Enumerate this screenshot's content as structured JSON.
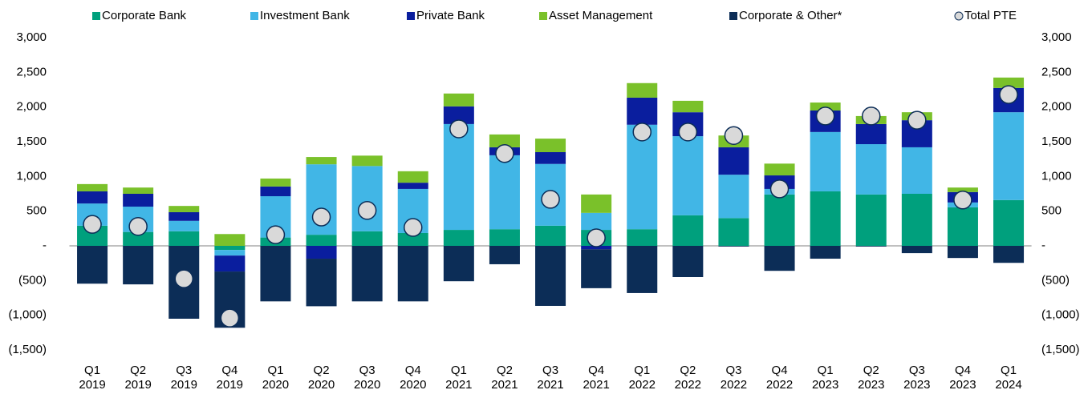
{
  "chart_data": {
    "type": "bar",
    "stacked": true,
    "categories": [
      [
        "Q1",
        "2019"
      ],
      [
        "Q2",
        "2019"
      ],
      [
        "Q3",
        "2019"
      ],
      [
        "Q4",
        "2019"
      ],
      [
        "Q1",
        "2020"
      ],
      [
        "Q2",
        "2020"
      ],
      [
        "Q3",
        "2020"
      ],
      [
        "Q4",
        "2020"
      ],
      [
        "Q1",
        "2021"
      ],
      [
        "Q2",
        "2021"
      ],
      [
        "Q3",
        "2021"
      ],
      [
        "Q4",
        "2021"
      ],
      [
        "Q1",
        "2022"
      ],
      [
        "Q2",
        "2022"
      ],
      [
        "Q3",
        "2022"
      ],
      [
        "Q4",
        "2022"
      ],
      [
        "Q1",
        "2023"
      ],
      [
        "Q2",
        "2023"
      ],
      [
        "Q3",
        "2023"
      ],
      [
        "Q4",
        "2023"
      ],
      [
        "Q1",
        "2024"
      ]
    ],
    "series": [
      {
        "name": "Corporate Bank",
        "color": "#00a07d",
        "values": [
          290,
          200,
          210,
          -60,
          120,
          160,
          210,
          185,
          230,
          240,
          290,
          230,
          240,
          440,
          400,
          740,
          785,
          740,
          750,
          555,
          660
        ]
      },
      {
        "name": "Investment Bank",
        "color": "#41b6e6",
        "values": [
          320,
          365,
          150,
          -80,
          595,
          1015,
          940,
          635,
          1525,
          1065,
          890,
          245,
          1505,
          1140,
          625,
          80,
          855,
          725,
          670,
          70,
          1265
        ]
      },
      {
        "name": "Private Bank",
        "color": "#0a1e9e",
        "values": [
          175,
          185,
          125,
          -230,
          140,
          -185,
          0,
          90,
          255,
          115,
          170,
          -50,
          390,
          345,
          395,
          195,
          310,
          290,
          390,
          150,
          350
        ]
      },
      {
        "name": "Asset Management",
        "color": "#7ac12a",
        "values": [
          105,
          90,
          90,
          170,
          115,
          105,
          150,
          165,
          185,
          185,
          195,
          265,
          210,
          165,
          170,
          170,
          115,
          115,
          115,
          65,
          150
        ]
      },
      {
        "name": "Corporate & Other*",
        "color": "#0c2d57",
        "values": [
          -545,
          -555,
          -1050,
          -810,
          -800,
          -685,
          -800,
          -800,
          -510,
          -265,
          -865,
          -560,
          -680,
          -450,
          -10,
          -360,
          -185,
          -10,
          -105,
          -175,
          -245
        ]
      },
      {
        "name": "Total PTE",
        "type": "scatter",
        "color": "#d9d9d9",
        "values": [
          310,
          280,
          -475,
          -1040,
          160,
          415,
          510,
          265,
          1685,
          1330,
          670,
          115,
          1640,
          1640,
          1590,
          820,
          1870,
          1870,
          1810,
          660,
          2180
        ]
      }
    ],
    "ylim": [
      -1500,
      3000
    ],
    "yticks": [
      {
        "value": 3000,
        "label": "3,000"
      },
      {
        "value": 2500,
        "label": "2,500"
      },
      {
        "value": 2000,
        "label": "2,000"
      },
      {
        "value": 1500,
        "label": "1,500"
      },
      {
        "value": 1000,
        "label": "1,000"
      },
      500,
      {
        "value": 0,
        "label": "-"
      },
      {
        "value": -500,
        "label": "(500)"
      },
      {
        "value": -1000,
        "label": "(1,000)"
      },
      {
        "value": -1500,
        "label": "(1,500)"
      }
    ],
    "legend": "top"
  }
}
